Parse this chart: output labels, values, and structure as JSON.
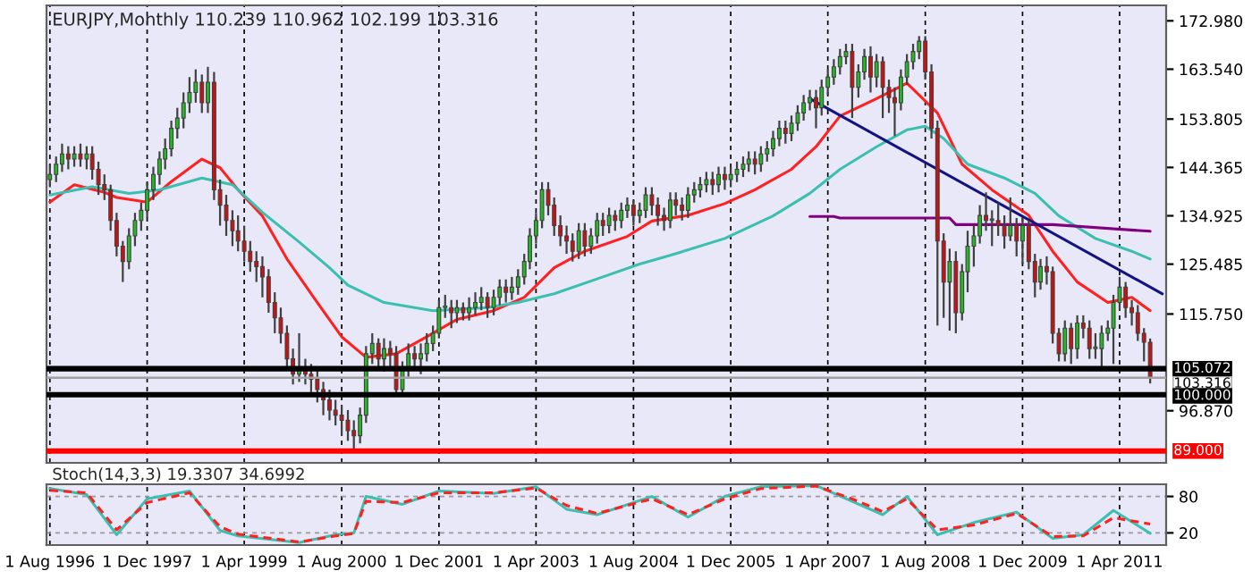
{
  "chart_data": [
    {
      "type": "candlestick",
      "title": "EURJPY,Monthly 110.239 110.962 102.199 103.316",
      "x": [
        "1996-08",
        "1996-09",
        "1996-10",
        "1996-11",
        "1996-12",
        "1997-01",
        "1997-02",
        "1997-03",
        "1997-04",
        "1997-05",
        "1997-06",
        "1997-07",
        "1997-08",
        "1997-09",
        "1997-10",
        "1997-11",
        "1997-12",
        "1998-01",
        "1998-02",
        "1998-03",
        "1998-04",
        "1998-05",
        "1998-06",
        "1998-07",
        "1998-08",
        "1998-09",
        "1998-10",
        "1998-11",
        "1998-12",
        "1999-01",
        "1999-02",
        "1999-03",
        "1999-04",
        "1999-05",
        "1999-06",
        "1999-07",
        "1999-08",
        "1999-09",
        "1999-10",
        "1999-11",
        "1999-12",
        "2000-01",
        "2000-02",
        "2000-03",
        "2000-04",
        "2000-05",
        "2000-06",
        "2000-07",
        "2000-08",
        "2000-09",
        "2000-10",
        "2000-11",
        "2000-12",
        "2001-01",
        "2001-02",
        "2001-03",
        "2001-04",
        "2001-05",
        "2001-06",
        "2001-07",
        "2001-08",
        "2001-09",
        "2001-10",
        "2001-11",
        "2001-12",
        "2002-01",
        "2002-02",
        "2002-03",
        "2002-04",
        "2002-05",
        "2002-06",
        "2002-07",
        "2002-08",
        "2002-09",
        "2002-10",
        "2002-11",
        "2002-12",
        "2003-01",
        "2003-02",
        "2003-03",
        "2003-04",
        "2003-05",
        "2003-06",
        "2003-07",
        "2003-08",
        "2003-09",
        "2003-10",
        "2003-11",
        "2003-12",
        "2004-01",
        "2004-02",
        "2004-03",
        "2004-04",
        "2004-05",
        "2004-06",
        "2004-07",
        "2004-08",
        "2004-09",
        "2004-10",
        "2004-11",
        "2004-12",
        "2005-01",
        "2005-02",
        "2005-03",
        "2005-04",
        "2005-05",
        "2005-06",
        "2005-07",
        "2005-08",
        "2005-09",
        "2005-10",
        "2005-11",
        "2005-12",
        "2006-01",
        "2006-02",
        "2006-03",
        "2006-04",
        "2006-05",
        "2006-06",
        "2006-07",
        "2006-08",
        "2006-09",
        "2006-10",
        "2006-11",
        "2006-12",
        "2007-01",
        "2007-02",
        "2007-03",
        "2007-04",
        "2007-05",
        "2007-06",
        "2007-07",
        "2007-08",
        "2007-09",
        "2007-10",
        "2007-11",
        "2007-12",
        "2008-01",
        "2008-02",
        "2008-03",
        "2008-04",
        "2008-05",
        "2008-06",
        "2008-07",
        "2008-08",
        "2008-09",
        "2008-10",
        "2008-11",
        "2008-12",
        "2009-01",
        "2009-02",
        "2009-03",
        "2009-04",
        "2009-05",
        "2009-06",
        "2009-07",
        "2009-08",
        "2009-09",
        "2009-10",
        "2009-11",
        "2009-12",
        "2010-01",
        "2010-02",
        "2010-03",
        "2010-04",
        "2010-05",
        "2010-06",
        "2010-07",
        "2010-08",
        "2010-09",
        "2010-10",
        "2010-11",
        "2010-12",
        "2011-01",
        "2011-02",
        "2011-03",
        "2011-04",
        "2011-05",
        "2011-06",
        "2011-07",
        "2011-08",
        "2011-09"
      ],
      "ohlc": [
        [
          142,
          145,
          140.5,
          143
        ],
        [
          143,
          146.5,
          141.5,
          145
        ],
        [
          145,
          149,
          143.5,
          147
        ],
        [
          147,
          148.5,
          144,
          146
        ],
        [
          146,
          148.5,
          144.5,
          147
        ],
        [
          147,
          149,
          144.5,
          146
        ],
        [
          146,
          148.5,
          144,
          147
        ],
        [
          147,
          148.5,
          142,
          144
        ],
        [
          144,
          145.5,
          139,
          141
        ],
        [
          141,
          143,
          138,
          140
        ],
        [
          140,
          141,
          132,
          134
        ],
        [
          134,
          135.5,
          127,
          129
        ],
        [
          129,
          130,
          122,
          126
        ],
        [
          126,
          132.5,
          124.5,
          131
        ],
        [
          131,
          135.5,
          129,
          134
        ],
        [
          134,
          137.5,
          132,
          136
        ],
        [
          136,
          141.5,
          134.5,
          140
        ],
        [
          140,
          144.5,
          138,
          143
        ],
        [
          143,
          147.5,
          141,
          146
        ],
        [
          146,
          150,
          144,
          148
        ],
        [
          148,
          153.5,
          146.5,
          152
        ],
        [
          152,
          156,
          150,
          154
        ],
        [
          154,
          159,
          152,
          157
        ],
        [
          157,
          162,
          155,
          159
        ],
        [
          159,
          163.5,
          157,
          161
        ],
        [
          161,
          162.5,
          155,
          157
        ],
        [
          157,
          164,
          155,
          161
        ],
        [
          161,
          163,
          138,
          140
        ],
        [
          140,
          142,
          133,
          137
        ],
        [
          137,
          139,
          131,
          134
        ],
        [
          134,
          136,
          129,
          132
        ],
        [
          132,
          135,
          128,
          130
        ],
        [
          130,
          133,
          126,
          128
        ],
        [
          128,
          130,
          124,
          126
        ],
        [
          126,
          128,
          122,
          125
        ],
        [
          125,
          127,
          119,
          123
        ],
        [
          123,
          124.5,
          116,
          118
        ],
        [
          118,
          120,
          112,
          115
        ],
        [
          115,
          117,
          110,
          112
        ],
        [
          112,
          113.5,
          105,
          107
        ],
        [
          107,
          109,
          102,
          104
        ],
        [
          104,
          112,
          102.5,
          105
        ],
        [
          105,
          107,
          102,
          104
        ],
        [
          104,
          106,
          100.5,
          103
        ],
        [
          103,
          105,
          98.5,
          101
        ],
        [
          101,
          102.5,
          96,
          99
        ],
        [
          99,
          101,
          95,
          97
        ],
        [
          97,
          99,
          94,
          96
        ],
        [
          96,
          98,
          92,
          95
        ],
        [
          95,
          97,
          91,
          93
        ],
        [
          93,
          95,
          89.5,
          92
        ],
        [
          92,
          97.5,
          90.5,
          96
        ],
        [
          96,
          109.5,
          94.5,
          108
        ],
        [
          108,
          112,
          106,
          110
        ],
        [
          110,
          111,
          105,
          107
        ],
        [
          107,
          111,
          104.5,
          109
        ],
        [
          109,
          110.5,
          105.5,
          108
        ],
        [
          108,
          109.5,
          100,
          101
        ],
        [
          101,
          106.5,
          100,
          105
        ],
        [
          105,
          110,
          103.5,
          108
        ],
        [
          108,
          109.5,
          105,
          107
        ],
        [
          107,
          110,
          104,
          108
        ],
        [
          108,
          112,
          106.5,
          110
        ],
        [
          110,
          113.5,
          108.5,
          112
        ],
        [
          112,
          118.5,
          111,
          117
        ],
        [
          117,
          119.5,
          115,
          117
        ],
        [
          117,
          118.5,
          113,
          116
        ],
        [
          116,
          118.5,
          114,
          117
        ],
        [
          117,
          118,
          114.5,
          116
        ],
        [
          116,
          119,
          114.5,
          117
        ],
        [
          117,
          120,
          115.5,
          118
        ],
        [
          118,
          121,
          116.5,
          119
        ],
        [
          119,
          120,
          115,
          117
        ],
        [
          117,
          120.5,
          115.5,
          119
        ],
        [
          119,
          122.5,
          117.5,
          121
        ],
        [
          121,
          122.5,
          118,
          120
        ],
        [
          120,
          123,
          118.5,
          121
        ],
        [
          121,
          124.5,
          119.5,
          123
        ],
        [
          123,
          127.5,
          121.5,
          126
        ],
        [
          126,
          132.5,
          124.5,
          131
        ],
        [
          131,
          135.5,
          129.5,
          134
        ],
        [
          134,
          141.5,
          132.5,
          140
        ],
        [
          140,
          141.5,
          135,
          137
        ],
        [
          137,
          138.5,
          131,
          133
        ],
        [
          133,
          135,
          129,
          131
        ],
        [
          131,
          133,
          127.5,
          130
        ],
        [
          130,
          131.5,
          126,
          128
        ],
        [
          128,
          133.5,
          126.5,
          132
        ],
        [
          132,
          133.5,
          127,
          129
        ],
        [
          129,
          132.5,
          127.5,
          131
        ],
        [
          131,
          135.5,
          129.5,
          134
        ],
        [
          134,
          135.5,
          131,
          133
        ],
        [
          133,
          136.5,
          131.5,
          135
        ],
        [
          135,
          136,
          132,
          134
        ],
        [
          134,
          137.5,
          132.5,
          136
        ],
        [
          136,
          138.5,
          134.5,
          137
        ],
        [
          137,
          138,
          133,
          135
        ],
        [
          135,
          137.5,
          133.5,
          136
        ],
        [
          136,
          140.5,
          134.5,
          139
        ],
        [
          139,
          140.5,
          135,
          137
        ],
        [
          137,
          138.5,
          133,
          135
        ],
        [
          135,
          136.5,
          132,
          134
        ],
        [
          134,
          139.5,
          132.5,
          138
        ],
        [
          138,
          139.5,
          135,
          137
        ],
        [
          137,
          138.5,
          134,
          136
        ],
        [
          136,
          140.5,
          134.5,
          139
        ],
        [
          139,
          141.5,
          137.5,
          140
        ],
        [
          140,
          142.5,
          138.5,
          141
        ],
        [
          141,
          143.5,
          139.5,
          142
        ],
        [
          142,
          143.5,
          139,
          141
        ],
        [
          141,
          144.5,
          139.5,
          143
        ],
        [
          143,
          144.5,
          140,
          142
        ],
        [
          142,
          144.5,
          140.5,
          143
        ],
        [
          143,
          145.5,
          141.5,
          144
        ],
        [
          144,
          146.5,
          142.5,
          145
        ],
        [
          145,
          147.5,
          143.5,
          146
        ],
        [
          146,
          147.5,
          143,
          145
        ],
        [
          145,
          148.5,
          143.5,
          147
        ],
        [
          147,
          149.5,
          145.5,
          148
        ],
        [
          148,
          151.5,
          146.5,
          150
        ],
        [
          150,
          153.5,
          148.5,
          152
        ],
        [
          152,
          153.5,
          149,
          151
        ],
        [
          151,
          154.5,
          149.5,
          153
        ],
        [
          153,
          156.5,
          151.5,
          155
        ],
        [
          155,
          158.5,
          153.5,
          157
        ],
        [
          157,
          159.5,
          155.5,
          158
        ],
        [
          158,
          159.5,
          152,
          156
        ],
        [
          156,
          161.5,
          154.5,
          160
        ],
        [
          160,
          163.5,
          158.5,
          162
        ],
        [
          162,
          165.5,
          160.5,
          164
        ],
        [
          164,
          167.5,
          162.5,
          166
        ],
        [
          166,
          168.5,
          164.5,
          167
        ],
        [
          167,
          168.5,
          154,
          160
        ],
        [
          160,
          164.5,
          158,
          163
        ],
        [
          163,
          167.5,
          161.5,
          166
        ],
        [
          166,
          168,
          159,
          162
        ],
        [
          162,
          166.5,
          160,
          165
        ],
        [
          165,
          166,
          154,
          160
        ],
        [
          160,
          161.5,
          155,
          158
        ],
        [
          158,
          160,
          150.5,
          157
        ],
        [
          157,
          163.5,
          155.5,
          162
        ],
        [
          162,
          166.5,
          160.5,
          165
        ],
        [
          165,
          168.5,
          163.5,
          167
        ],
        [
          167,
          170,
          165.5,
          169
        ],
        [
          169,
          170,
          161.5,
          163
        ],
        [
          163,
          164.5,
          150,
          152
        ],
        [
          152,
          153.5,
          113.5,
          130
        ],
        [
          130,
          131.5,
          115,
          122
        ],
        [
          122,
          128.5,
          112.5,
          126
        ],
        [
          126,
          128,
          112,
          116
        ],
        [
          116,
          125.5,
          114.5,
          124
        ],
        [
          124,
          132,
          120,
          129
        ],
        [
          129,
          133,
          125,
          131
        ],
        [
          131,
          137,
          129.5,
          135
        ],
        [
          135,
          139.5,
          132,
          134
        ],
        [
          134,
          136,
          129,
          134
        ],
        [
          134,
          137.5,
          131,
          133
        ],
        [
          133,
          135,
          128.5,
          131
        ],
        [
          131,
          138.5,
          130,
          133
        ],
        [
          133,
          134.5,
          127,
          130
        ],
        [
          130,
          134.5,
          125.5,
          133
        ],
        [
          133,
          134,
          124.5,
          126
        ],
        [
          126,
          127.5,
          119,
          122
        ],
        [
          122,
          126.5,
          120.5,
          125
        ],
        [
          125,
          127,
          121.5,
          124
        ],
        [
          124,
          125,
          110,
          112
        ],
        [
          112,
          113,
          106.5,
          108
        ],
        [
          108,
          114.5,
          106.5,
          113
        ],
        [
          113,
          114,
          106,
          109
        ],
        [
          109,
          115.5,
          107,
          114
        ],
        [
          114,
          115.5,
          111,
          113
        ],
        [
          113,
          114.5,
          107,
          109
        ],
        [
          109,
          112,
          107,
          109
        ],
        [
          109,
          113.5,
          105.5,
          112
        ],
        [
          112,
          114.5,
          110.5,
          113
        ],
        [
          113,
          119.5,
          106,
          118
        ],
        [
          118,
          123,
          116.5,
          121
        ],
        [
          121,
          122,
          115,
          117
        ],
        [
          117,
          118.5,
          113.5,
          116
        ],
        [
          116,
          117.5,
          110.5,
          112
        ],
        [
          112,
          113,
          106.5,
          110.239
        ],
        [
          110.239,
          110.962,
          102.199,
          103.316
        ]
      ],
      "series": [
        {
          "type": "line",
          "color": "#ff2020",
          "x": [
            "1996-08",
            "1996-12",
            "1997-05",
            "1997-07",
            "1997-12",
            "1998-04",
            "1998-09",
            "1998-12",
            "1999-03",
            "1999-07",
            "1999-11",
            "2000-04",
            "2000-08",
            "2000-12",
            "2001-05",
            "2001-10",
            "2002-03",
            "2002-09",
            "2003-02",
            "2003-07",
            "2003-12",
            "2004-07",
            "2004-11",
            "2005-05",
            "2005-11",
            "2006-04",
            "2006-10",
            "2007-02",
            "2007-06",
            "2007-12",
            "2008-05",
            "2008-10",
            "2009-02",
            "2009-07",
            "2010-01",
            "2010-05",
            "2010-09",
            "2011-02",
            "2011-06",
            "2011-09"
          ],
          "values": [
            137.6,
            141,
            139.5,
            138.5,
            137.6,
            141.6,
            146,
            144.3,
            140,
            134.9,
            126.5,
            118,
            111.3,
            107.3,
            108,
            111.3,
            114.7,
            116.4,
            119,
            124.8,
            128,
            130.9,
            133.9,
            135,
            137.3,
            140,
            144,
            148.4,
            154.4,
            157.8,
            160.8,
            155,
            145,
            140,
            135,
            128,
            122,
            118,
            119,
            116.4
          ]
        },
        {
          "type": "line",
          "color": "#3cbfb0",
          "x": [
            "1996-08",
            "1997-03",
            "1997-09",
            "1998-02",
            "1998-09",
            "1999-02",
            "1999-07",
            "2000-01",
            "2000-06",
            "2000-09",
            "2001-03",
            "2001-11",
            "2002-08",
            "2003-01",
            "2003-07",
            "2004-03",
            "2004-09",
            "2005-02",
            "2005-11",
            "2006-07",
            "2007-01",
            "2007-06",
            "2007-12",
            "2008-05",
            "2008-08",
            "2008-11",
            "2009-03",
            "2009-09",
            "2010-02",
            "2010-06",
            "2010-12",
            "2011-06",
            "2011-09"
          ],
          "values": [
            139,
            140.6,
            139.3,
            140,
            142.3,
            141,
            135.6,
            129.8,
            124.8,
            121.4,
            118,
            116.4,
            117,
            118,
            119.7,
            123,
            125.5,
            127.2,
            130.5,
            134.9,
            139.3,
            144,
            148.4,
            151.7,
            152.4,
            150,
            145,
            142.3,
            139.3,
            134.9,
            130.5,
            128,
            126.5
          ]
        },
        {
          "type": "line",
          "color": "#800080",
          "x": [
            "2007-01",
            "2007-05",
            "2007-06",
            "2008-12",
            "2009-01",
            "2010-05",
            "2011-09"
          ],
          "values": [
            134.8,
            134.8,
            134.5,
            134.5,
            133.2,
            133.2,
            131.9
          ]
        },
        {
          "type": "line",
          "color": "#141480",
          "x": [
            "2007-01",
            "2011-11"
          ],
          "values": [
            157.8,
            119.7
          ]
        }
      ],
      "ref_lines": [
        {
          "axis": "y",
          "value": 105.072,
          "label": "105.072",
          "color": "#000000"
        },
        {
          "axis": "y",
          "value": 103.316,
          "label": "103.316",
          "color": "#a0a0a0"
        },
        {
          "axis": "y",
          "value": 100.0,
          "label": "100.000",
          "color": "#000000"
        },
        {
          "axis": "y",
          "value": 89.0,
          "label": "89.000",
          "color": "#ff0000"
        }
      ],
      "xlim": [
        "1996-07-15",
        "2011-11-20"
      ],
      "xticks": [
        {
          "value": "1996-08",
          "label": null
        },
        {
          "value": "1997-12",
          "label": null
        },
        {
          "value": "1999-04",
          "label": null
        },
        {
          "value": "2000-08",
          "label": null
        },
        {
          "value": "2001-12",
          "label": null
        },
        {
          "value": "2003-04",
          "label": null
        },
        {
          "value": "2004-08",
          "label": null
        },
        {
          "value": "2005-12",
          "label": null
        },
        {
          "value": "2007-04",
          "label": null
        },
        {
          "value": "2008-08",
          "label": null
        },
        {
          "value": "2009-12",
          "label": null
        },
        {
          "value": "2011-04",
          "label": null
        }
      ],
      "ylim": [
        86.7,
        176.0
      ],
      "yticks": [
        {
          "value": 172.98,
          "label": "172.980"
        },
        {
          "value": 163.54,
          "label": "163.540"
        },
        {
          "value": 153.805,
          "label": "153.805"
        },
        {
          "value": 144.365,
          "label": "144.365"
        },
        {
          "value": 134.925,
          "label": "134.925"
        },
        {
          "value": 125.485,
          "label": "125.485"
        },
        {
          "value": 115.75,
          "label": "115.750"
        },
        {
          "value": 96.87,
          "label": "96.870"
        }
      ],
      "tick_labels": "y",
      "grid": "x"
    },
    {
      "type": "line",
      "title": "Stoch(14,3,3) 19.3307 34.6992",
      "x": [
        "1996-08",
        "1997-02",
        "1997-07",
        "1997-12",
        "1998-07",
        "1998-12",
        "1999-03",
        "2000-01",
        "2000-07",
        "2000-10",
        "2000-12",
        "2001-06",
        "2001-12",
        "2002-09",
        "2003-04",
        "2003-09",
        "2004-02",
        "2004-11",
        "2005-05",
        "2005-11",
        "2006-05",
        "2007-02",
        "2007-08",
        "2008-01",
        "2008-05",
        "2008-10",
        "2009-04",
        "2009-11",
        "2010-05",
        "2010-10",
        "2011-03",
        "2011-09"
      ],
      "series": [
        {
          "color": "#3cbfb0",
          "line_style": "solid",
          "values": [
            93,
            83,
            17,
            76,
            89,
            24,
            15,
            4,
            17,
            20,
            80,
            67,
            89,
            85,
            96,
            59,
            50,
            80,
            46,
            80,
            96,
            98,
            72,
            50,
            80,
            17,
            37,
            54,
            11,
            17,
            57,
            19.3
          ]
        },
        {
          "color": "#ff2020",
          "line_style": "dashed",
          "values": [
            90,
            86,
            25,
            70,
            86,
            30,
            18,
            5,
            15,
            19,
            72,
            70,
            86,
            86,
            94,
            65,
            52,
            76,
            50,
            76,
            93,
            97,
            76,
            55,
            76,
            25,
            33,
            52,
            14,
            15,
            45,
            34.7
          ]
        }
      ],
      "xlim": [
        "1996-07-15",
        "2011-11-20"
      ],
      "xticks": [
        {
          "value": "1996-08",
          "label": "1 Aug 1996"
        },
        {
          "value": "1997-12",
          "label": "1 Dec 1997"
        },
        {
          "value": "1999-04",
          "label": "1 Apr 1999"
        },
        {
          "value": "2000-08",
          "label": "1 Aug 2000"
        },
        {
          "value": "2001-12",
          "label": "1 Dec 2001"
        },
        {
          "value": "2003-04",
          "label": "1 Apr 2003"
        },
        {
          "value": "2004-08",
          "label": "1 Aug 2004"
        },
        {
          "value": "2005-12",
          "label": "1 Dec 2005"
        },
        {
          "value": "2007-04",
          "label": "1 Apr 2007"
        },
        {
          "value": "2008-08",
          "label": "1 Aug 2008"
        },
        {
          "value": "2009-12",
          "label": "1 Dec 2009"
        },
        {
          "value": "2011-04",
          "label": "1 Apr 2011"
        }
      ],
      "ylim": [
        0,
        100
      ],
      "yticks": [
        20,
        80
      ],
      "grid": true
    }
  ]
}
